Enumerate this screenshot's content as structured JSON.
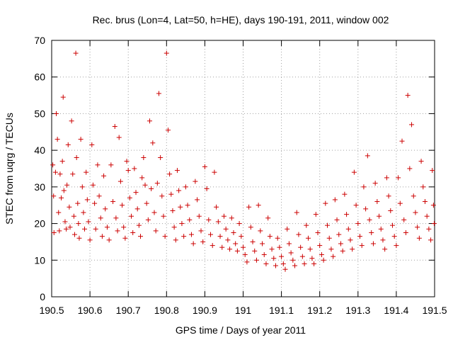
{
  "chart_data": {
    "type": "scatter",
    "title": "Rec. brus (Lon=4, Lat=50, h=HE), days 190-191, 2011, window 002",
    "xlabel": "GPS time / Days of year 2011",
    "ylabel": "STEC from uqrg / TECUs",
    "xlim": [
      190.5,
      191.5
    ],
    "ylim": [
      0,
      70
    ],
    "xticks": [
      190.5,
      190.6,
      190.7,
      190.8,
      190.9,
      191,
      191.1,
      191.2,
      191.3,
      191.4,
      191.5
    ],
    "xtick_labels": [
      "190.5",
      "190.6",
      "190.7",
      "190.8",
      "190.9",
      "191",
      "191.1",
      "191.2",
      "191.3",
      "191.4",
      "191.5"
    ],
    "yticks": [
      0,
      10,
      20,
      30,
      40,
      50,
      60,
      70
    ],
    "ytick_labels": [
      "0",
      "10",
      "20",
      "30",
      "40",
      "50",
      "60",
      "70"
    ],
    "grid": true,
    "grid_style": "dotted",
    "marker": "plus",
    "marker_color": "#cc0000",
    "points": [
      [
        190.503,
        36.0
      ],
      [
        190.505,
        27.5
      ],
      [
        190.506,
        17.5
      ],
      [
        190.51,
        34.0
      ],
      [
        190.512,
        50.0
      ],
      [
        190.515,
        43.0
      ],
      [
        190.518,
        23.0
      ],
      [
        190.52,
        18.0
      ],
      [
        190.522,
        33.5
      ],
      [
        190.525,
        27.0
      ],
      [
        190.528,
        37.0
      ],
      [
        190.53,
        54.5
      ],
      [
        190.532,
        29.0
      ],
      [
        190.535,
        20.5
      ],
      [
        190.538,
        18.5
      ],
      [
        190.54,
        30.5
      ],
      [
        190.543,
        41.5
      ],
      [
        190.546,
        24.5
      ],
      [
        190.548,
        19.0
      ],
      [
        190.552,
        48.0
      ],
      [
        190.555,
        33.5
      ],
      [
        190.558,
        22.0
      ],
      [
        190.56,
        17.0
      ],
      [
        190.563,
        66.5
      ],
      [
        190.565,
        38.0
      ],
      [
        190.568,
        25.5
      ],
      [
        190.57,
        20.0
      ],
      [
        190.572,
        16.0
      ],
      [
        190.576,
        43.0
      ],
      [
        190.58,
        30.0
      ],
      [
        190.583,
        23.0
      ],
      [
        190.586,
        18.5
      ],
      [
        190.59,
        34.0
      ],
      [
        190.593,
        26.5
      ],
      [
        190.596,
        20.5
      ],
      [
        190.6,
        15.5
      ],
      [
        190.605,
        41.5
      ],
      [
        190.608,
        30.5
      ],
      [
        190.612,
        25.5
      ],
      [
        190.615,
        18.5
      ],
      [
        190.62,
        36.0
      ],
      [
        190.624,
        27.5
      ],
      [
        190.628,
        21.5
      ],
      [
        190.632,
        16.5
      ],
      [
        190.636,
        33.0
      ],
      [
        190.64,
        24.0
      ],
      [
        190.645,
        19.0
      ],
      [
        190.65,
        15.5
      ],
      [
        190.655,
        36.0
      ],
      [
        190.66,
        26.0
      ],
      [
        190.665,
        46.5
      ],
      [
        190.668,
        21.5
      ],
      [
        190.672,
        18.0
      ],
      [
        190.676,
        43.5
      ],
      [
        190.68,
        31.5
      ],
      [
        190.684,
        25.0
      ],
      [
        190.688,
        19.0
      ],
      [
        190.692,
        16.0
      ],
      [
        190.696,
        37.0
      ],
      [
        190.7,
        34.5
      ],
      [
        190.704,
        27.0
      ],
      [
        190.708,
        22.0
      ],
      [
        190.712,
        17.5
      ],
      [
        190.716,
        35.0
      ],
      [
        190.72,
        28.5
      ],
      [
        190.724,
        24.0
      ],
      [
        190.728,
        19.5
      ],
      [
        190.732,
        16.5
      ],
      [
        190.736,
        32.5
      ],
      [
        190.74,
        38.0
      ],
      [
        190.744,
        30.5
      ],
      [
        190.748,
        25.5
      ],
      [
        190.752,
        21.0
      ],
      [
        190.756,
        48.0
      ],
      [
        190.76,
        29.5
      ],
      [
        190.764,
        42.0
      ],
      [
        190.768,
        23.0
      ],
      [
        190.772,
        18.0
      ],
      [
        190.776,
        31.0
      ],
      [
        190.78,
        55.5
      ],
      [
        190.784,
        38.0
      ],
      [
        190.788,
        27.5
      ],
      [
        190.792,
        22.0
      ],
      [
        190.796,
        16.5
      ],
      [
        190.8,
        66.5
      ],
      [
        190.804,
        45.5
      ],
      [
        190.808,
        33.5
      ],
      [
        190.812,
        28.0
      ],
      [
        190.816,
        23.5
      ],
      [
        190.82,
        19.0
      ],
      [
        190.824,
        15.5
      ],
      [
        190.828,
        34.5
      ],
      [
        190.832,
        29.0
      ],
      [
        190.836,
        24.5
      ],
      [
        190.84,
        20.0
      ],
      [
        190.845,
        16.5
      ],
      [
        190.85,
        30.0
      ],
      [
        190.855,
        25.0
      ],
      [
        190.86,
        21.0
      ],
      [
        190.865,
        17.0
      ],
      [
        190.87,
        14.5
      ],
      [
        190.875,
        31.5
      ],
      [
        190.88,
        26.5
      ],
      [
        190.885,
        22.0
      ],
      [
        190.89,
        18.0
      ],
      [
        190.895,
        15.0
      ],
      [
        190.9,
        35.5
      ],
      [
        190.905,
        29.5
      ],
      [
        190.91,
        21.0
      ],
      [
        190.915,
        17.0
      ],
      [
        190.92,
        14.0
      ],
      [
        190.925,
        34.0
      ],
      [
        190.93,
        24.5
      ],
      [
        190.935,
        20.5
      ],
      [
        190.94,
        16.5
      ],
      [
        190.945,
        13.5
      ],
      [
        190.95,
        22.0
      ],
      [
        190.955,
        18.5
      ],
      [
        190.96,
        15.5
      ],
      [
        190.965,
        13.0
      ],
      [
        190.97,
        21.5
      ],
      [
        190.975,
        17.5
      ],
      [
        190.98,
        14.5
      ],
      [
        190.985,
        12.5
      ],
      [
        190.99,
        20.0
      ],
      [
        190.995,
        16.5
      ],
      [
        191.0,
        13.5
      ],
      [
        191.005,
        11.5
      ],
      [
        191.01,
        9.5
      ],
      [
        191.015,
        24.5
      ],
      [
        191.02,
        19.0
      ],
      [
        191.025,
        15.0
      ],
      [
        191.03,
        12.5
      ],
      [
        191.035,
        10.0
      ],
      [
        191.04,
        25.0
      ],
      [
        191.045,
        18.0
      ],
      [
        191.05,
        14.5
      ],
      [
        191.055,
        11.5
      ],
      [
        191.06,
        9.0
      ],
      [
        191.065,
        21.5
      ],
      [
        191.07,
        16.5
      ],
      [
        191.075,
        13.0
      ],
      [
        191.08,
        10.5
      ],
      [
        191.085,
        8.5
      ],
      [
        191.09,
        16.0
      ],
      [
        191.095,
        13.5
      ],
      [
        191.1,
        11.0
      ],
      [
        191.105,
        9.0
      ],
      [
        191.11,
        7.5
      ],
      [
        191.115,
        18.5
      ],
      [
        191.12,
        14.5
      ],
      [
        191.125,
        12.0
      ],
      [
        191.13,
        10.0
      ],
      [
        191.135,
        8.5
      ],
      [
        191.14,
        23.0
      ],
      [
        191.145,
        17.0
      ],
      [
        191.15,
        13.5
      ],
      [
        191.155,
        11.0
      ],
      [
        191.16,
        9.0
      ],
      [
        191.165,
        19.5
      ],
      [
        191.17,
        16.0
      ],
      [
        191.175,
        13.0
      ],
      [
        191.18,
        10.5
      ],
      [
        191.185,
        9.0
      ],
      [
        191.19,
        22.5
      ],
      [
        191.195,
        17.5
      ],
      [
        191.2,
        14.0
      ],
      [
        191.205,
        11.5
      ],
      [
        191.21,
        10.0
      ],
      [
        191.215,
        25.5
      ],
      [
        191.22,
        19.5
      ],
      [
        191.225,
        16.0
      ],
      [
        191.23,
        13.0
      ],
      [
        191.235,
        11.0
      ],
      [
        191.24,
        26.5
      ],
      [
        191.245,
        21.0
      ],
      [
        191.25,
        17.0
      ],
      [
        191.255,
        14.5
      ],
      [
        191.26,
        12.5
      ],
      [
        191.265,
        28.0
      ],
      [
        191.27,
        22.5
      ],
      [
        191.275,
        18.5
      ],
      [
        191.28,
        15.5
      ],
      [
        191.285,
        13.0
      ],
      [
        191.29,
        34.0
      ],
      [
        191.295,
        25.0
      ],
      [
        191.3,
        20.0
      ],
      [
        191.305,
        16.5
      ],
      [
        191.31,
        14.0
      ],
      [
        191.315,
        30.0
      ],
      [
        191.32,
        24.0
      ],
      [
        191.325,
        38.5
      ],
      [
        191.33,
        21.0
      ],
      [
        191.335,
        17.5
      ],
      [
        191.34,
        14.5
      ],
      [
        191.345,
        31.0
      ],
      [
        191.35,
        26.0
      ],
      [
        191.355,
        22.0
      ],
      [
        191.36,
        18.5
      ],
      [
        191.365,
        15.5
      ],
      [
        191.37,
        13.0
      ],
      [
        191.375,
        32.5
      ],
      [
        191.38,
        27.5
      ],
      [
        191.385,
        23.5
      ],
      [
        191.39,
        19.5
      ],
      [
        191.395,
        16.5
      ],
      [
        191.4,
        14.0
      ],
      [
        191.405,
        32.5
      ],
      [
        191.41,
        25.5
      ],
      [
        191.415,
        42.5
      ],
      [
        191.42,
        21.0
      ],
      [
        191.425,
        17.5
      ],
      [
        191.43,
        55.0
      ],
      [
        191.435,
        35.0
      ],
      [
        191.44,
        47.0
      ],
      [
        191.445,
        27.5
      ],
      [
        191.45,
        23.0
      ],
      [
        191.455,
        19.0
      ],
      [
        191.46,
        16.0
      ],
      [
        191.465,
        37.0
      ],
      [
        191.47,
        30.0
      ],
      [
        191.475,
        26.0
      ],
      [
        191.48,
        22.0
      ],
      [
        191.485,
        18.5
      ],
      [
        191.49,
        15.5
      ],
      [
        191.494,
        34.5
      ],
      [
        191.497,
        25.0
      ],
      [
        191.499,
        20.0
      ]
    ]
  }
}
